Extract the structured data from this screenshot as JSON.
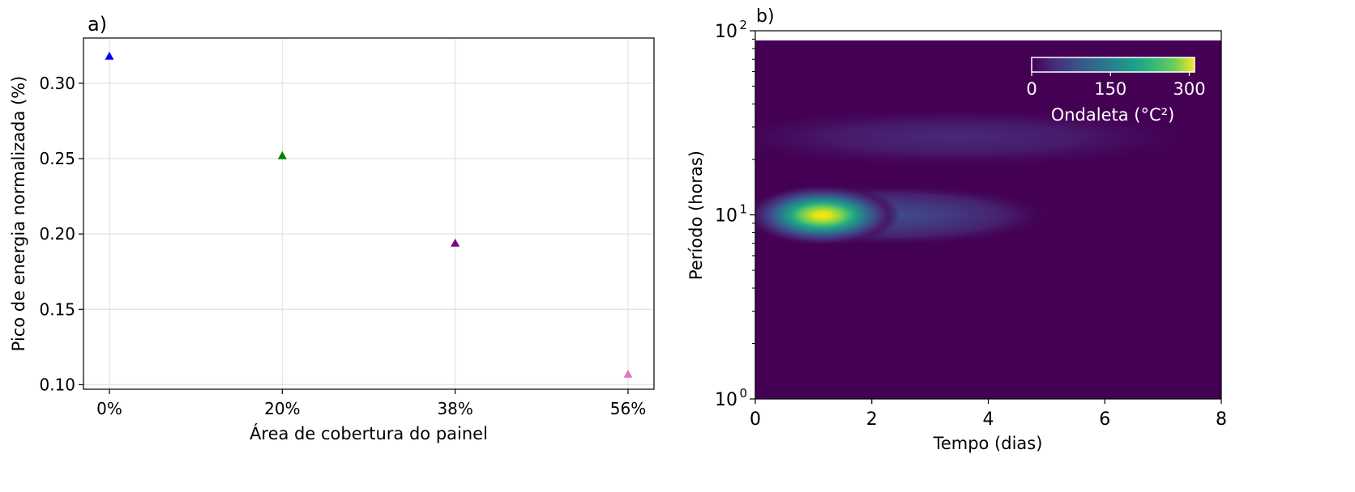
{
  "chart_data": [
    {
      "type": "scatter",
      "panel_label": "a)",
      "title": "",
      "xlabel": "Área de cobertura do painel",
      "ylabel": "Pico de energia normalizada (%)",
      "categories": [
        "0%",
        "20%",
        "38%",
        "56%"
      ],
      "x_ticks": [
        "0%",
        "20%",
        "38%",
        "56%"
      ],
      "y_ticks": [
        "0.10",
        "0.15",
        "0.20",
        "0.25",
        "0.30"
      ],
      "ylim": [
        0.097,
        0.33
      ],
      "marker": "triangle",
      "grid": true,
      "points": [
        {
          "x": "0%",
          "y": 0.318,
          "color": "#0000ff"
        },
        {
          "x": "20%",
          "y": 0.252,
          "color": "#008000"
        },
        {
          "x": "38%",
          "y": 0.194,
          "color": "#800080"
        },
        {
          "x": "56%",
          "y": 0.107,
          "color": "#e377c2"
        }
      ]
    },
    {
      "type": "heatmap",
      "panel_label": "b)",
      "title": "",
      "xlabel": "Tempo (dias)",
      "ylabel": "Período (horas)",
      "x_ticks": [
        "0",
        "2",
        "4",
        "6",
        "8"
      ],
      "xlim": [
        0,
        8
      ],
      "y_scale": "log",
      "ylim": [
        1,
        100
      ],
      "y_ticks": [
        {
          "base": "10",
          "exp": "0"
        },
        {
          "base": "10",
          "exp": "1"
        },
        {
          "base": "10",
          "exp": "2"
        }
      ],
      "colormap": "viridis",
      "background_color": "#440154",
      "colorbar": {
        "label": "Ondaleta (°C²)",
        "ticks": [
          "0",
          "150",
          "300"
        ],
        "range": [
          0,
          310
        ],
        "placement": "top-right"
      },
      "blobs": [
        {
          "t_center": 1.15,
          "period_center_hours": 9.8,
          "peak": 300,
          "note_shape": "elongated toward later times"
        },
        {
          "t_center": 2.0,
          "period_center_hours": 28,
          "peak": 45
        }
      ]
    }
  ]
}
